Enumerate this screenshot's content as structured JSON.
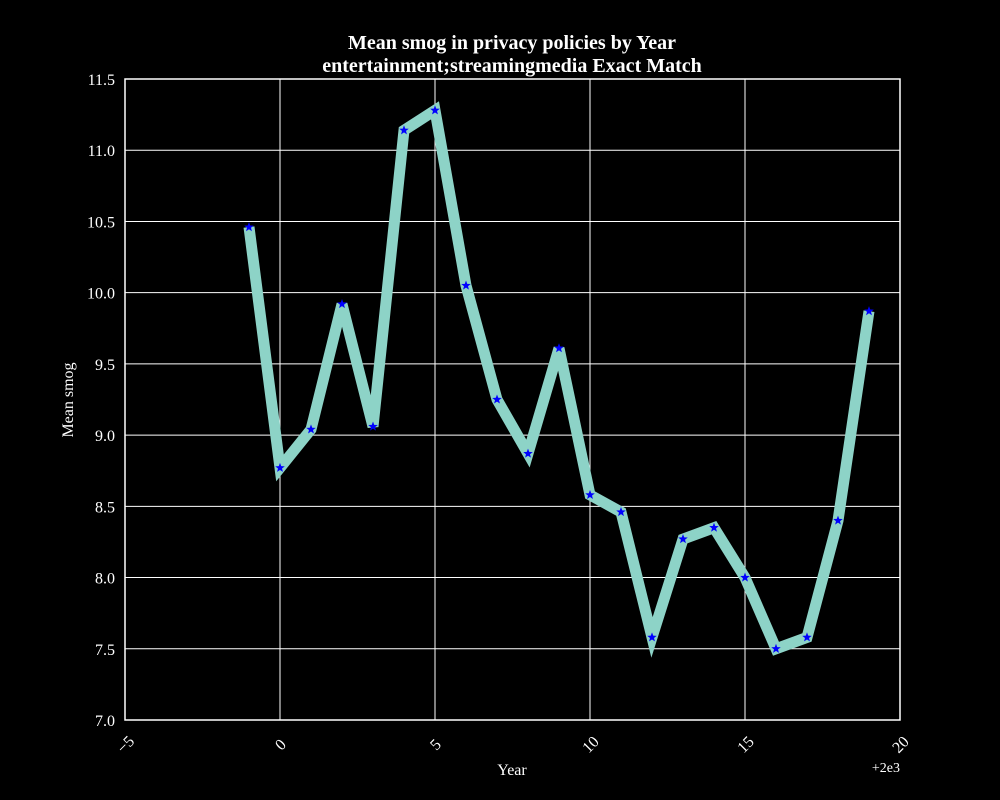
{
  "chart_data": {
    "type": "line",
    "title": "Mean smog in privacy policies by Year",
    "subtitle": "entertainment;streamingmedia Exact Match",
    "xlabel": "Year",
    "ylabel": "Mean smog",
    "x_offset_label": "+2e3",
    "xlim": [
      -5,
      20
    ],
    "ylim": [
      7.0,
      11.5
    ],
    "xticks": [
      "−5",
      "0",
      "5",
      "10",
      "15",
      "20"
    ],
    "yticks": [
      "7.0",
      "7.5",
      "8.0",
      "8.5",
      "9.0",
      "9.5",
      "10.0",
      "10.5",
      "11.0",
      "11.5"
    ],
    "grid": true,
    "series": [
      {
        "x": [
          -1,
          0,
          1,
          2,
          3,
          4,
          5,
          6,
          7,
          8,
          9,
          10,
          11,
          12,
          13,
          14,
          15,
          16,
          17,
          18,
          19
        ],
        "y": [
          10.46,
          8.77,
          9.04,
          9.92,
          9.06,
          11.14,
          11.28,
          10.05,
          9.25,
          8.87,
          9.61,
          8.58,
          8.46,
          7.58,
          8.27,
          8.35,
          8.0,
          7.5,
          7.58,
          8.4,
          9.87
        ],
        "line_color": "#8dd3c7",
        "marker_color": "#0000ff",
        "marker": "star"
      }
    ],
    "colors": {
      "background": "#000000",
      "grid": "#ffffff",
      "text": "#ffffff"
    }
  }
}
